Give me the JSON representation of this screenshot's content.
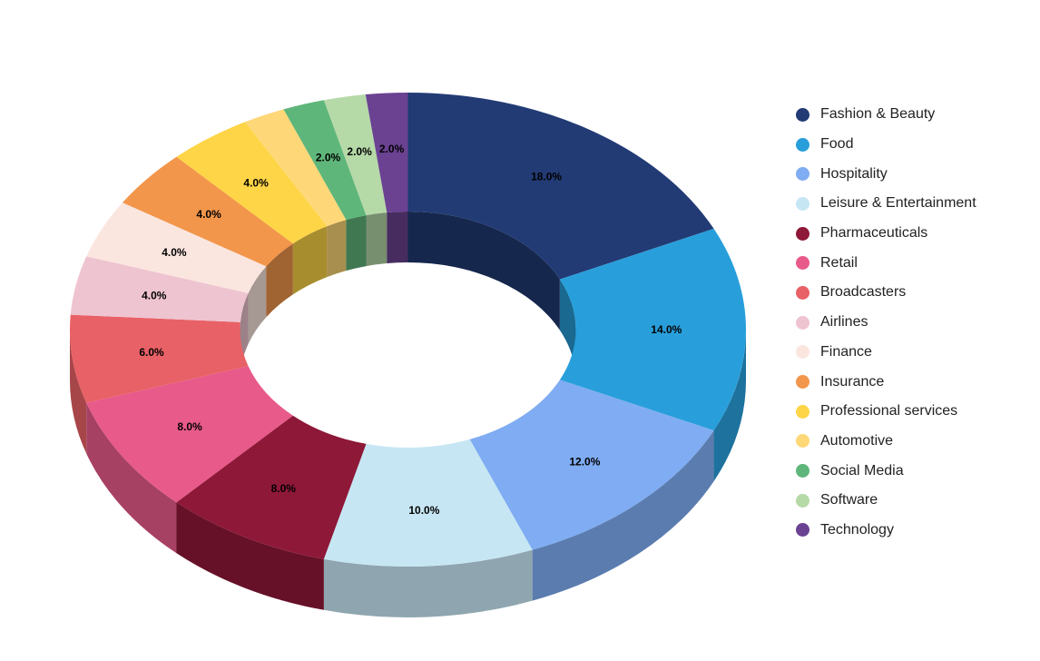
{
  "chart_data": {
    "type": "pie",
    "variant": "3d-donut",
    "title": "",
    "legend_position": "right",
    "value_format": "percent",
    "slices": [
      {
        "name": "Fashion & Beauty",
        "value": 18.0,
        "label": "18.0%",
        "color": "#223b75"
      },
      {
        "name": "Food",
        "value": 14.0,
        "label": "14.0%",
        "color": "#289fdb"
      },
      {
        "name": "Hospitality",
        "value": 12.0,
        "label": "12.0%",
        "color": "#7facf2"
      },
      {
        "name": "Leisure & Entertainment",
        "value": 10.0,
        "label": "10.0%",
        "color": "#c7e6f4"
      },
      {
        "name": "Pharmaceuticals",
        "value": 8.0,
        "label": "8.0%",
        "color": "#8e1838"
      },
      {
        "name": "Retail",
        "value": 8.0,
        "label": "8.0%",
        "color": "#e85a8a"
      },
      {
        "name": "Broadcasters",
        "value": 6.0,
        "label": "6.0%",
        "color": "#e86166"
      },
      {
        "name": "Airlines",
        "value": 4.0,
        "label": "4.0%",
        "color": "#eec4d0"
      },
      {
        "name": "Finance",
        "value": 4.0,
        "label": "4.0%",
        "color": "#fbe6df"
      },
      {
        "name": "Insurance",
        "value": 4.0,
        "label": "4.0%",
        "color": "#f2964b"
      },
      {
        "name": "Professional services",
        "value": 4.0,
        "label": "4.0%",
        "color": "#fed546"
      },
      {
        "name": "Automotive",
        "value": 2.0,
        "label": "",
        "color": "#fed878"
      },
      {
        "name": "Social Media",
        "value": 2.0,
        "label": "2.0%",
        "color": "#5fb67a"
      },
      {
        "name": "Software",
        "value": 2.0,
        "label": "2.0%",
        "color": "#b6d9a8"
      },
      {
        "name": "Technology",
        "value": 2.0,
        "label": "2.0%",
        "color": "#6b4292"
      }
    ]
  }
}
